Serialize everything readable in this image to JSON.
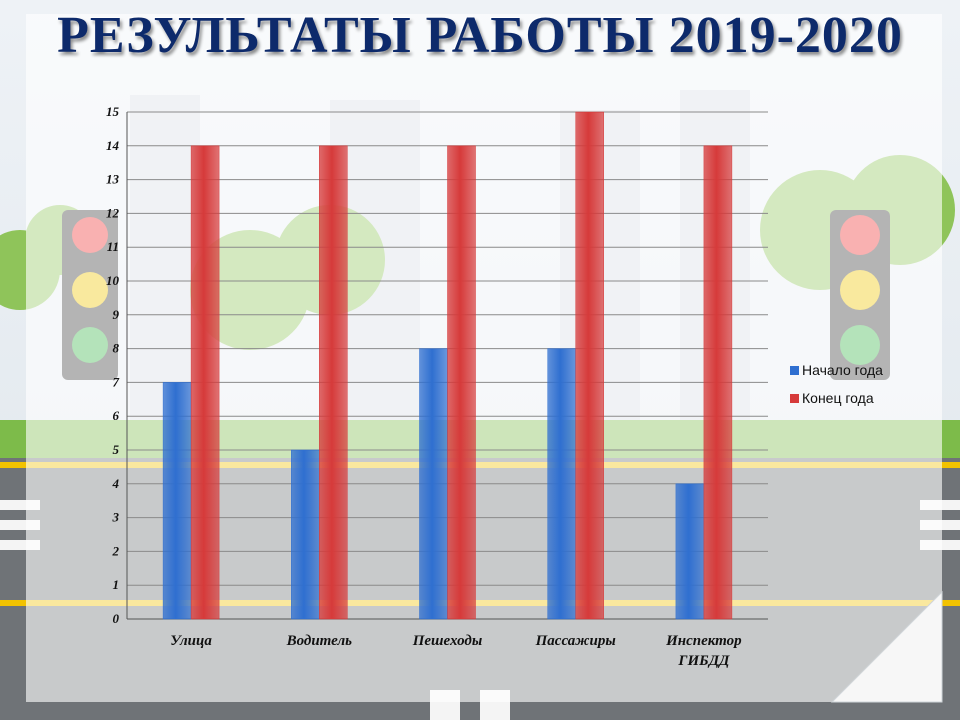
{
  "page": {
    "title": "РЕЗУЛЬТАТЫ РАБОТЫ 2019-2020"
  },
  "colors": {
    "title": "#0d2a6b",
    "series_blue": "#2f6fd0",
    "series_red": "#d63a3a"
  },
  "chart_data": {
    "type": "bar",
    "title": "",
    "xlabel": "",
    "ylabel": "",
    "categories": [
      "Улица",
      "Водитель",
      "Пешеходы",
      "Пассажиры",
      "Инспектор ГИБДД"
    ],
    "series": [
      {
        "name": "Начало года",
        "values": [
          7,
          5,
          8,
          8,
          4
        ],
        "color": "#2f6fd0"
      },
      {
        "name": "Конец года",
        "values": [
          14,
          14,
          14,
          15,
          14
        ],
        "color": "#d63a3a"
      }
    ],
    "ylim": [
      0,
      15
    ],
    "yticks": [
      "0",
      "1",
      "2",
      "3",
      "4",
      "5",
      "6",
      "7",
      "8",
      "9",
      "10",
      "11",
      "12",
      "13",
      "14",
      "15"
    ],
    "grid": true,
    "legend_position": "right"
  }
}
